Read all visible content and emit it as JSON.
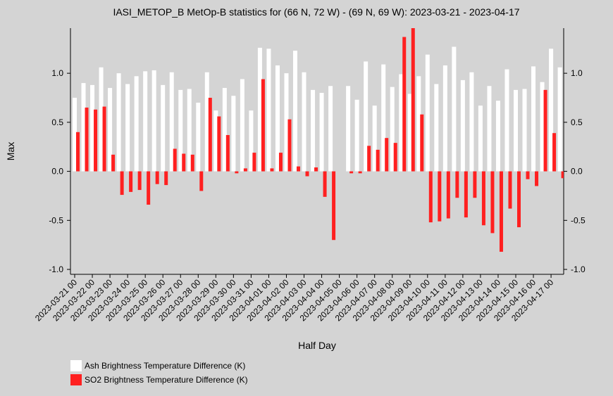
{
  "chart_data": {
    "type": "bar",
    "title": "IASI_METOP_B MetOp-B statistics for (66 N, 72 W) - (69 N, 69 W): 2023-03-21 - 2023-04-17",
    "x_label": "Half Day",
    "y_label": "Max",
    "categories": [
      "2023-03-21 00",
      null,
      "2023-03-22 00",
      null,
      "2023-03-23 00",
      null,
      "2023-03-24 00",
      null,
      "2023-03-25 00",
      null,
      "2023-03-26 00",
      null,
      "2023-03-27 00",
      null,
      "2023-03-28 00",
      null,
      "2023-03-29 00",
      null,
      "2023-03-30 00",
      null,
      "2023-03-31 00",
      null,
      "2023-04-01 00",
      null,
      "2023-04-02 00",
      null,
      "2023-04-03 00",
      null,
      "2023-04-04 00",
      null,
      "2023-04-05 00",
      null,
      "2023-04-06 00",
      null,
      "2023-04-07 00",
      null,
      "2023-04-08 00",
      null,
      "2023-04-09 00",
      null,
      "2023-04-10 00",
      null,
      "2023-04-11 00",
      null,
      "2023-04-12 00",
      null,
      "2023-04-13 00",
      null,
      "2023-04-14 00",
      null,
      "2023-04-15 00",
      null,
      "2023-04-16 00",
      null,
      "2023-04-17 00",
      null
    ],
    "series": [
      {
        "name": "Ash Brightness Temperature Difference (K)",
        "color": "#ffffff",
        "values": [
          0.75,
          0.9,
          0.88,
          1.06,
          0.85,
          1.0,
          0.89,
          0.97,
          1.02,
          1.03,
          0.88,
          1.01,
          0.83,
          0.84,
          0.7,
          1.01,
          0.62,
          0.85,
          0.77,
          0.94,
          0.62,
          1.26,
          1.25,
          1.08,
          1.0,
          1.23,
          1.01,
          0.83,
          0.8,
          0.87,
          null,
          0.87,
          0.73,
          1.12,
          0.67,
          1.09,
          0.86,
          0.99,
          0.79,
          0.97,
          1.19,
          0.89,
          1.08,
          1.27,
          0.93,
          1.01,
          0.67,
          0.87,
          0.72,
          1.04,
          0.83,
          0.84,
          1.07,
          0.91,
          1.25,
          1.06
        ]
      },
      {
        "name": "SO2 Brightness Temperature Difference (K)",
        "color": "#ff2020",
        "values": [
          0.4,
          0.65,
          0.63,
          0.66,
          0.17,
          -0.24,
          -0.21,
          -0.19,
          -0.34,
          -0.13,
          -0.14,
          0.23,
          0.18,
          0.17,
          -0.2,
          0.75,
          0.56,
          0.37,
          -0.02,
          0.03,
          0.19,
          0.94,
          0.03,
          0.19,
          0.53,
          0.05,
          -0.05,
          0.04,
          -0.26,
          -0.7,
          null,
          -0.02,
          -0.02,
          0.26,
          0.22,
          0.34,
          0.29,
          1.37,
          1.5,
          0.58,
          -0.52,
          -0.51,
          -0.48,
          -0.27,
          -0.47,
          -0.27,
          -0.55,
          -0.63,
          -0.82,
          -0.38,
          -0.57,
          -0.08,
          -0.15,
          0.83,
          0.39,
          -0.07
        ]
      }
    ],
    "ylim": [
      -1.05,
      1.46
    ],
    "yticks": [
      {
        "value": -1,
        "label": "-1.0"
      },
      -0.5,
      {
        "value": 0,
        "label": "0.0"
      },
      0.5,
      {
        "value": 1,
        "label": "1.0"
      }
    ],
    "legend": "bottom-left"
  }
}
